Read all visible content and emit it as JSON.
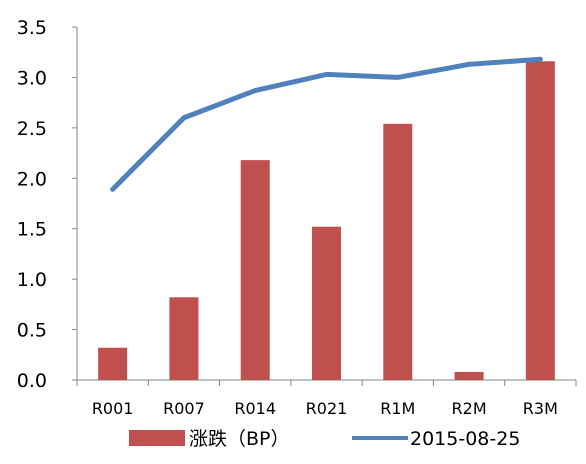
{
  "chart_data": {
    "type": "bar",
    "categories": [
      "R001",
      "R007",
      "R014",
      "R021",
      "R1M",
      "R2M",
      "R3M"
    ],
    "series": [
      {
        "name": "涨跌（BP）",
        "kind": "bar",
        "color": "#c0504d",
        "values": [
          0.32,
          0.82,
          2.18,
          1.52,
          2.54,
          0.08,
          3.16
        ]
      },
      {
        "name": "2015-08-25",
        "kind": "line",
        "color": "#4f81bd",
        "values": [
          1.89,
          2.6,
          2.87,
          3.03,
          3.0,
          3.13,
          3.18
        ]
      }
    ],
    "y_ticks": [
      "0.0",
      "0.5",
      "1.0",
      "1.5",
      "2.0",
      "2.5",
      "3.0",
      "3.5"
    ],
    "ylim": [
      0,
      3.5
    ],
    "grid": false,
    "legend_position": "bottom"
  }
}
